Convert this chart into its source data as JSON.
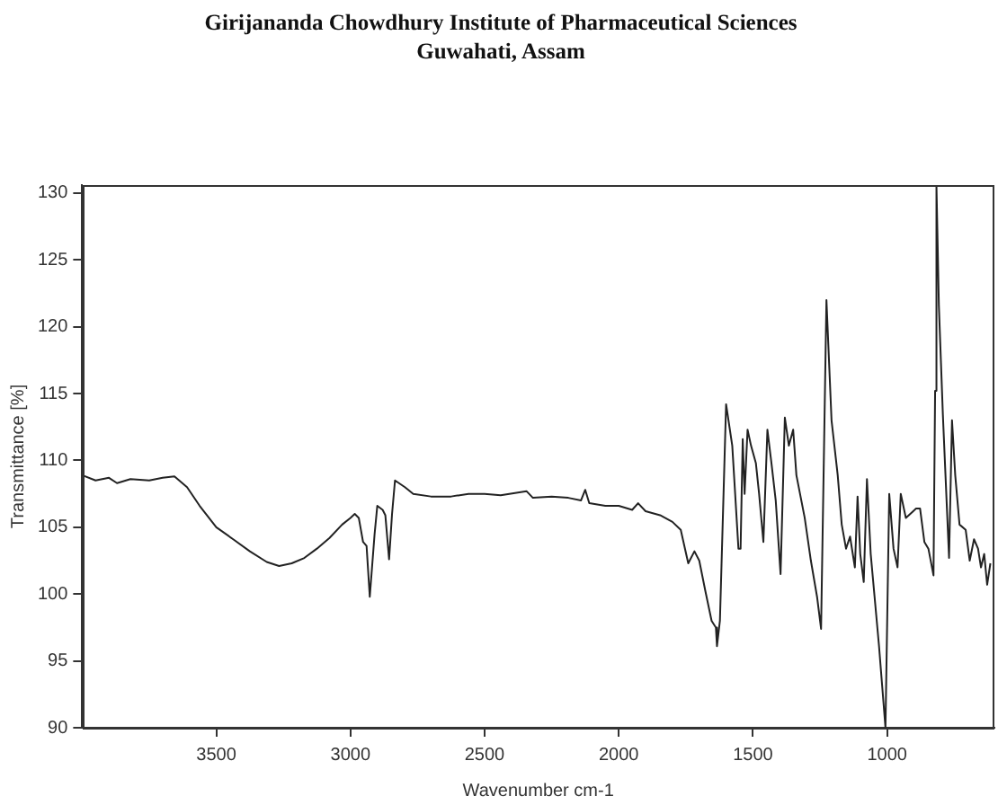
{
  "chart_data": {
    "type": "line",
    "title": "Girijananda Chowdhury Institute of Pharmaceutical Sciences",
    "subtitle": "Guwahati, Assam",
    "xlabel": "Wavenumber cm-1",
    "ylabel": "Transmittance [%]",
    "x": [
      4000,
      3950,
      3900,
      3870,
      3820,
      3750,
      3700,
      3656,
      3609,
      3562,
      3500,
      3437,
      3375,
      3312,
      3266,
      3219,
      3172,
      3125,
      3078,
      3031,
      3000,
      2984,
      2969,
      2953,
      2940,
      2928,
      2910,
      2900,
      2880,
      2870,
      2856,
      2845,
      2834,
      2797,
      2766,
      2700,
      2625,
      2560,
      2500,
      2440,
      2344,
      2320,
      2250,
      2188,
      2141,
      2125,
      2110,
      2050,
      2000,
      1950,
      1928,
      1900,
      1846,
      1800,
      1769,
      1741,
      1718,
      1700,
      1677,
      1654,
      1638,
      1634,
      1623,
      1600,
      1577,
      1554,
      1546,
      1538,
      1531,
      1520,
      1507,
      1489,
      1477,
      1461,
      1446,
      1431,
      1415,
      1397,
      1381,
      1366,
      1350,
      1338,
      1307,
      1284,
      1261,
      1246,
      1226,
      1207,
      1184,
      1169,
      1153,
      1138,
      1120,
      1110,
      1100,
      1087,
      1075,
      1061,
      1030,
      1006,
      992,
      976,
      961,
      949,
      930,
      892,
      877,
      861,
      846,
      827,
      821,
      816,
      807,
      792,
      769,
      758,
      746,
      730,
      707,
      692,
      676,
      661,
      650,
      638,
      627,
      615
    ],
    "values": [
      108.9,
      108.5,
      108.7,
      108.3,
      108.6,
      108.5,
      108.7,
      108.8,
      108.0,
      106.6,
      105.0,
      104.1,
      103.2,
      102.4,
      102.1,
      102.3,
      102.7,
      103.4,
      104.2,
      105.2,
      105.7,
      106.0,
      105.7,
      103.9,
      103.6,
      99.8,
      104.5,
      106.6,
      106.3,
      105.9,
      102.6,
      106.0,
      108.5,
      108.0,
      107.5,
      107.3,
      107.3,
      107.5,
      107.5,
      107.4,
      107.7,
      107.2,
      107.3,
      107.2,
      107.0,
      107.8,
      106.8,
      106.6,
      106.6,
      106.3,
      106.8,
      106.2,
      105.9,
      105.4,
      104.8,
      102.3,
      103.2,
      102.5,
      100.2,
      98.0,
      97.5,
      96.1,
      98.0,
      114.2,
      111.1,
      103.4,
      103.4,
      111.6,
      107.5,
      112.3,
      111.1,
      109.8,
      107.5,
      103.9,
      112.3,
      109.8,
      107.0,
      101.5,
      113.2,
      111.1,
      112.3,
      108.9,
      105.7,
      102.5,
      99.8,
      97.4,
      122.0,
      113.0,
      108.9,
      105.2,
      103.4,
      104.3,
      102.0,
      107.3,
      103.0,
      100.9,
      108.6,
      103.0,
      96.1,
      90.0,
      107.5,
      103.4,
      102.0,
      107.5,
      105.7,
      106.4,
      106.4,
      103.9,
      103.4,
      101.4,
      115.2,
      130.6,
      121.6,
      113.4,
      102.7,
      113.0,
      108.9,
      105.2,
      104.8,
      102.5,
      104.1,
      103.4,
      102.0,
      103.0,
      100.7,
      102.3
    ],
    "color": "#222222",
    "xlim": [
      4000,
      600
    ],
    "xticks": [
      3500,
      3000,
      2500,
      2000,
      1500,
      1000
    ],
    "ylim": [
      90,
      130.6
    ],
    "yticks": [
      90,
      95,
      100,
      105,
      110,
      115,
      120,
      125,
      130
    ]
  }
}
